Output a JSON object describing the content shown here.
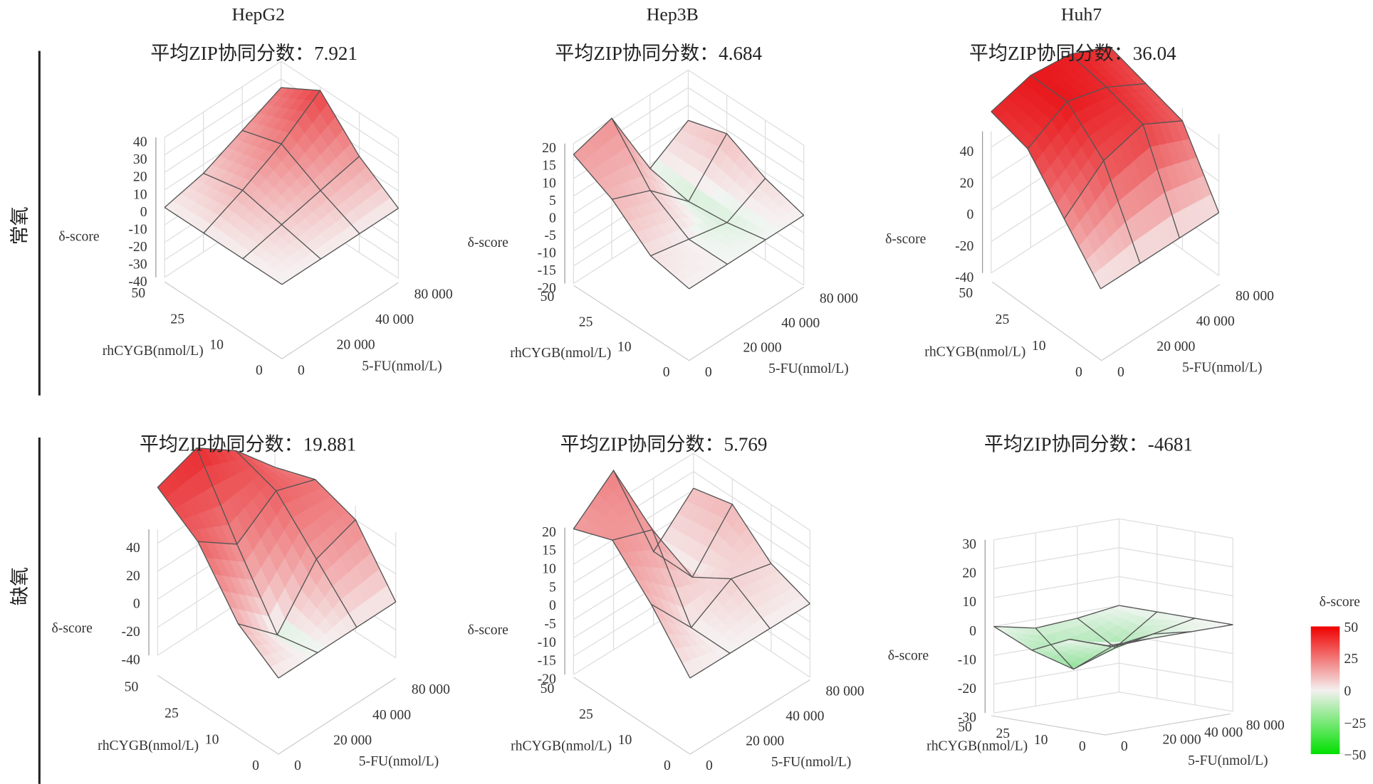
{
  "columns": [
    "HepG2",
    "Hep3B",
    "Huh7"
  ],
  "rows": [
    "常氧",
    "缺氧"
  ],
  "chart_data": [
    {
      "type": "surface",
      "cell": "HepG2",
      "condition": "常氧",
      "title": "平均ZIP协同分数：7.921",
      "xlabel": "rhCYGB(nmol/L)",
      "ylabel": "5-FU(nmol/L)",
      "zlabel": "δ-score",
      "x_ticks": [
        "0",
        "10",
        "25",
        "50"
      ],
      "y_ticks": [
        "0",
        "20 000",
        "40 000",
        "80 000"
      ],
      "z_ticks": [
        40,
        30,
        20,
        10,
        0,
        -10,
        -20,
        -30,
        -40
      ],
      "zlim": [
        -40,
        40
      ],
      "z": [
        [
          0,
          0,
          0,
          0
        ],
        [
          0,
          5,
          10,
          15
        ],
        [
          0,
          10,
          22,
          38
        ],
        [
          0,
          5,
          15,
          25
        ]
      ]
    },
    {
      "type": "surface",
      "cell": "Hep3B",
      "condition": "常氧",
      "title": "平均ZIP协同分数：4.684",
      "xlabel": "rhCYGB(nmol/L)",
      "ylabel": "5-FU(nmol/L)",
      "zlabel": "δ-score",
      "x_ticks": [
        "0",
        "10",
        "25",
        "50"
      ],
      "y_ticks": [
        "0",
        "20 000",
        "40 000",
        "80 000"
      ],
      "z_ticks": [
        20,
        15,
        10,
        5,
        0,
        -5,
        -10,
        -15,
        -20
      ],
      "zlim": [
        -20,
        20
      ],
      "z": [
        [
          0,
          0,
          0,
          0
        ],
        [
          2,
          0,
          -2,
          3
        ],
        [
          10,
          6,
          -3,
          8
        ],
        [
          15,
          18,
          -1,
          5
        ]
      ]
    },
    {
      "type": "surface",
      "cell": "Huh7",
      "condition": "常氧",
      "title": "平均ZIP协同分数：36.04",
      "xlabel": "rhCYGB(nmol/L)",
      "ylabel": "5-FU(nmol/L)",
      "zlabel": "δ-score",
      "x_ticks": [
        "0",
        "10",
        "25",
        "50"
      ],
      "y_ticks": [
        "0",
        "20 000",
        "40 000",
        "80 000"
      ],
      "z_ticks": [
        40,
        20,
        0,
        -20,
        -40
      ],
      "zlim": [
        -40,
        50
      ],
      "z": [
        [
          0,
          0,
          0,
          0
        ],
        [
          20,
          35,
          40,
          30
        ],
        [
          40,
          50,
          45,
          35
        ],
        [
          45,
          50,
          48,
          40
        ]
      ]
    },
    {
      "type": "surface",
      "cell": "HepG2",
      "condition": "缺氧",
      "title": "平均ZIP协同分数：19.881",
      "xlabel": "rhCYGB(nmol/L)",
      "ylabel": "5-FU(nmol/L)",
      "zlabel": "δ-score",
      "x_ticks": [
        "0",
        "10",
        "25",
        "50"
      ],
      "y_ticks": [
        "0",
        "20 000",
        "40 000",
        "80 000"
      ],
      "z_ticks": [
        40,
        20,
        0,
        -20,
        -40
      ],
      "zlim": [
        -40,
        50
      ],
      "z": [
        [
          0,
          0,
          0,
          0
        ],
        [
          10,
          -3,
          15,
          20
        ],
        [
          30,
          20,
          30,
          25
        ],
        [
          40,
          45,
          35,
          20
        ]
      ]
    },
    {
      "type": "surface",
      "cell": "Hep3B",
      "condition": "缺氧",
      "title": "平均ZIP协同分数：5.769",
      "xlabel": "rhCYGB(nmol/L)",
      "ylabel": "5-FU(nmol/L)",
      "zlabel": "δ-score",
      "x_ticks": [
        "0",
        "10",
        "25",
        "50"
      ],
      "y_ticks": [
        "0",
        "20 000",
        "40 000",
        "80 000"
      ],
      "z_ticks": [
        20,
        15,
        10,
        5,
        0,
        -5,
        -10,
        -15,
        -20
      ],
      "zlim": [
        -20,
        20
      ],
      "z": [
        [
          0,
          0,
          0,
          0
        ],
        [
          10,
          0,
          5,
          3
        ],
        [
          18,
          15,
          0,
          10
        ],
        [
          15,
          22,
          0,
          8
        ]
      ]
    },
    {
      "type": "surface",
      "cell": "Huh7",
      "condition": "缺氧",
      "title": "平均ZIP协同分数：-4681",
      "xlabel": "rhCYGB(nmol/L)",
      "ylabel": "5-FU(nmol/L)",
      "zlabel": "δ-score",
      "x_ticks": [
        "0",
        "10",
        "25",
        "50"
      ],
      "y_ticks": [
        "0",
        "20 000",
        "40 000",
        "80 000"
      ],
      "z_ticks": [
        30,
        20,
        10,
        0,
        -10,
        -20,
        -30
      ],
      "zlim": [
        -30,
        30
      ],
      "z": [
        [
          0,
          0,
          0,
          0
        ],
        [
          0,
          -5,
          -3,
          0
        ],
        [
          -6,
          -15,
          -10,
          0
        ],
        [
          0,
          -3,
          -2,
          0
        ]
      ]
    }
  ],
  "colorbar": {
    "title": "δ-score",
    "ticks": [
      "50",
      "25",
      "0",
      "−25",
      "−50"
    ],
    "range": [
      -50,
      50
    ],
    "colors": {
      "max": "#f00000",
      "mid": "#f4f0f0",
      "min": "#00e000"
    }
  },
  "colors": {
    "grid_line": "#555555",
    "wall": "#dddddd",
    "text": "#222222"
  }
}
